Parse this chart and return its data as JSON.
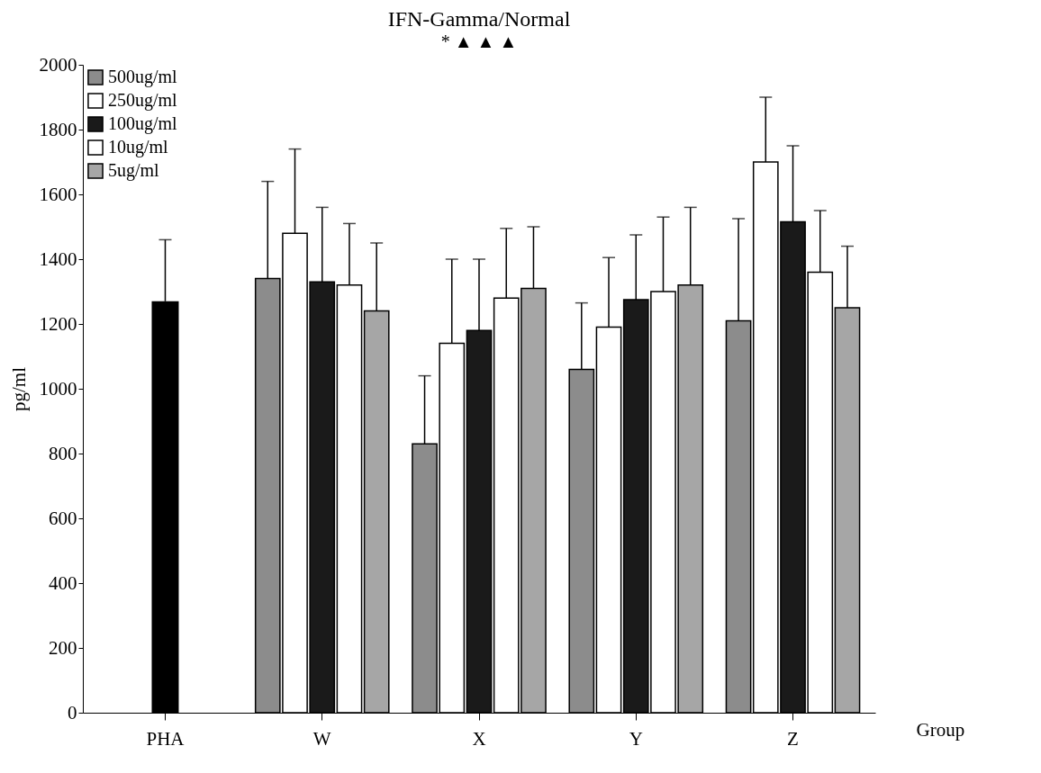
{
  "chart_data": {
    "type": "bar",
    "title": "IFN-Gamma/Normal",
    "xlabel": "Group",
    "ylabel": "pg/ml",
    "categories": [
      "PHA",
      "W",
      "X",
      "Y",
      "Z"
    ],
    "series": [
      {
        "color": "#000000",
        "values": [
          1270,
          null,
          null,
          null,
          null
        ],
        "errors": [
          [
            1270,
            1460
          ],
          null,
          null,
          null,
          null
        ]
      },
      {
        "name": "500ug/ml",
        "color": "#8c8c8c",
        "values": [
          null,
          1340,
          830,
          1060,
          1210
        ],
        "errors": [
          null,
          [
            1340,
            1640
          ],
          [
            830,
            1040
          ],
          [
            1060,
            1265
          ],
          [
            1210,
            1525
          ]
        ]
      },
      {
        "name": "250ug/ml",
        "color": "#ffffff",
        "values": [
          null,
          1480,
          1140,
          1190,
          1700
        ],
        "errors": [
          null,
          [
            1480,
            1740
          ],
          [
            1140,
            1400
          ],
          [
            1190,
            1405
          ],
          [
            1700,
            1900
          ]
        ]
      },
      {
        "name": "100ug/ml",
        "color": "#1a1a1a",
        "values": [
          null,
          1330,
          1180,
          1275,
          1515
        ],
        "errors": [
          null,
          [
            1330,
            1560
          ],
          [
            1180,
            1400
          ],
          [
            1275,
            1475
          ],
          [
            1515,
            1750
          ]
        ]
      },
      {
        "name": "10ug/ml",
        "color": "#ffffff",
        "values": [
          null,
          1320,
          1280,
          1300,
          1360
        ],
        "errors": [
          null,
          [
            1320,
            1510
          ],
          [
            1280,
            1495
          ],
          [
            1300,
            1530
          ],
          [
            1360,
            1550
          ]
        ]
      },
      {
        "name": "5ug/ml",
        "color": "#a6a6a6",
        "values": [
          null,
          1240,
          1310,
          1320,
          1250
        ],
        "errors": [
          null,
          [
            1240,
            1450
          ],
          [
            1310,
            1500
          ],
          [
            1320,
            1560
          ],
          [
            1250,
            1440
          ]
        ]
      }
    ],
    "annotations": [
      "*",
      "▲",
      "▲",
      "▲"
    ],
    "ylim": [
      0,
      2000
    ],
    "yticks": [
      0,
      200,
      400,
      600,
      800,
      1000,
      1200,
      1400,
      1600,
      1800,
      2000
    ],
    "grid": false,
    "legend": "top left"
  }
}
